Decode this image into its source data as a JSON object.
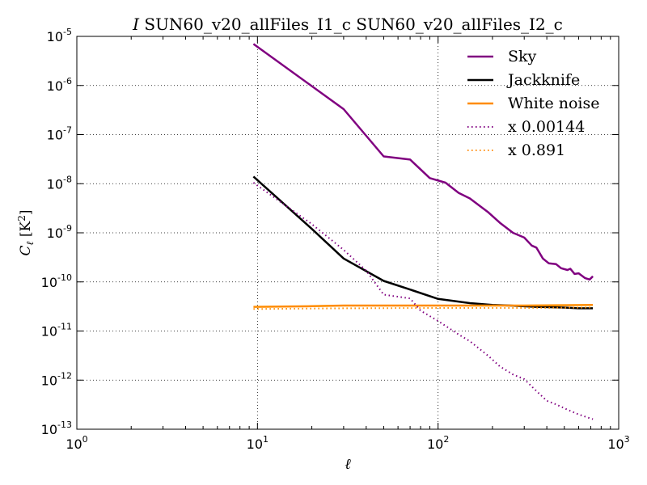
{
  "chart_data": {
    "type": "line",
    "title_italic": "I",
    "title": " SUN60_v20_allFiles_I1_c SUN60_v20_allFiles_I2_c",
    "xlabel": "ℓ",
    "ylabel_main": "C",
    "ylabel_sub": "ℓ",
    "ylabel_unit_open": " [K",
    "ylabel_unit_exp": "2",
    "ylabel_unit_close": "]",
    "xscale": "log",
    "yscale": "log",
    "xlim": [
      1,
      1000
    ],
    "ylim": [
      1e-13,
      1e-05
    ],
    "grid": true,
    "legend_position": "top-right",
    "x_ticks": [
      {
        "value": 1,
        "base": "10",
        "exp": "0"
      },
      {
        "value": 10,
        "base": "10",
        "exp": "1"
      },
      {
        "value": 100,
        "base": "10",
        "exp": "2"
      },
      {
        "value": 1000,
        "base": "10",
        "exp": "3"
      }
    ],
    "y_ticks": [
      {
        "value": 1e-05,
        "base": "10",
        "exp": "-5"
      },
      {
        "value": 1e-06,
        "base": "10",
        "exp": "-6"
      },
      {
        "value": 1e-07,
        "base": "10",
        "exp": "-7"
      },
      {
        "value": 1e-08,
        "base": "10",
        "exp": "-8"
      },
      {
        "value": 1e-09,
        "base": "10",
        "exp": "-9"
      },
      {
        "value": 1e-10,
        "base": "10",
        "exp": "-10"
      },
      {
        "value": 1e-11,
        "base": "10",
        "exp": "-11"
      },
      {
        "value": 1e-12,
        "base": "10",
        "exp": "-12"
      },
      {
        "value": 1e-13,
        "base": "10",
        "exp": "-13"
      }
    ],
    "series": [
      {
        "name": "Sky",
        "color": "#800080",
        "style": "solid",
        "points": [
          [
            9.5,
            7e-06
          ],
          [
            30,
            3.3e-07
          ],
          [
            50,
            3.6e-08
          ],
          [
            70,
            3.1e-08
          ],
          [
            90,
            1.3e-08
          ],
          [
            110,
            1.05e-08
          ],
          [
            130,
            6.5e-09
          ],
          [
            150,
            5e-09
          ],
          [
            190,
            2.6e-09
          ],
          [
            220,
            1.6e-09
          ],
          [
            260,
            1e-09
          ],
          [
            300,
            8e-10
          ],
          [
            330,
            5.5e-10
          ],
          [
            350,
            5e-10
          ],
          [
            380,
            3e-10
          ],
          [
            410,
            2.4e-10
          ],
          [
            450,
            2.3e-10
          ],
          [
            480,
            1.9e-10
          ],
          [
            520,
            1.75e-10
          ],
          [
            540,
            1.85e-10
          ],
          [
            570,
            1.45e-10
          ],
          [
            600,
            1.5e-10
          ],
          [
            650,
            1.2e-10
          ],
          [
            690,
            1.12e-10
          ],
          [
            720,
            1.3e-10
          ]
        ]
      },
      {
        "name": "Jackknife",
        "color": "#000000",
        "style": "solid",
        "points": [
          [
            9.5,
            1.4e-08
          ],
          [
            20,
            1.2e-09
          ],
          [
            30,
            3e-10
          ],
          [
            50,
            1.05e-10
          ],
          [
            70,
            7e-11
          ],
          [
            100,
            4.5e-11
          ],
          [
            150,
            3.7e-11
          ],
          [
            200,
            3.4e-11
          ],
          [
            250,
            3.3e-11
          ],
          [
            350,
            3.1e-11
          ],
          [
            500,
            3e-11
          ],
          [
            600,
            2.9e-11
          ],
          [
            720,
            2.9e-11
          ]
        ]
      },
      {
        "name": "White noise",
        "color": "#ff8c00",
        "style": "solid",
        "points": [
          [
            9.5,
            3.1e-11
          ],
          [
            20,
            3.2e-11
          ],
          [
            30,
            3.3e-11
          ],
          [
            100,
            3.3e-11
          ],
          [
            300,
            3.3e-11
          ],
          [
            720,
            3.4e-11
          ]
        ]
      },
      {
        "name": "x 0.00144",
        "color": "#800080",
        "style": "dotted",
        "points": [
          [
            9.5,
            1.05e-08
          ],
          [
            20,
            1.5e-09
          ],
          [
            30,
            4.5e-10
          ],
          [
            40,
            1.7e-10
          ],
          [
            50,
            5.5e-11
          ],
          [
            70,
            4.6e-11
          ],
          [
            80,
            2.6e-11
          ],
          [
            100,
            1.6e-11
          ],
          [
            130,
            8.5e-12
          ],
          [
            150,
            6.2e-12
          ],
          [
            190,
            3.1e-12
          ],
          [
            220,
            1.9e-12
          ],
          [
            260,
            1.3e-12
          ],
          [
            300,
            1.05e-12
          ],
          [
            350,
            6e-13
          ],
          [
            400,
            3.8e-13
          ],
          [
            450,
            3.2e-13
          ],
          [
            520,
            2.5e-13
          ],
          [
            600,
            2e-13
          ],
          [
            720,
            1.6e-13
          ]
        ]
      },
      {
        "name": "x 0.891",
        "color": "#ff8c00",
        "style": "dotted",
        "points": [
          [
            9.5,
            2.8e-11
          ],
          [
            30,
            2.9e-11
          ],
          [
            100,
            2.95e-11
          ],
          [
            300,
            2.95e-11
          ],
          [
            720,
            3e-11
          ]
        ]
      }
    ]
  }
}
